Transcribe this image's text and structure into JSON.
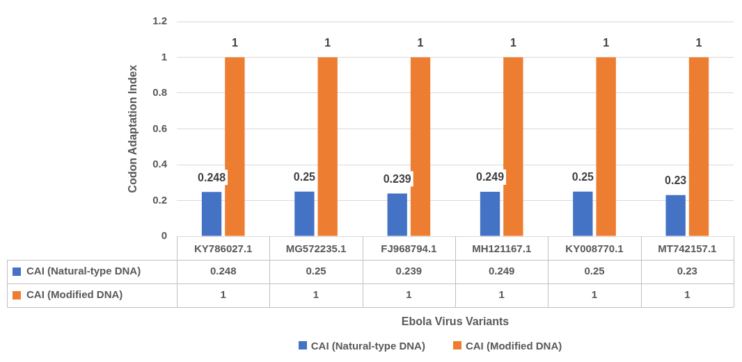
{
  "chart_data": {
    "type": "bar",
    "ylabel": "Codon Adaptation Index",
    "categories": [
      "KY786027.1",
      "MG572235.1",
      "FJ968794.1",
      "MH121167.1",
      "KY008770.1",
      "MT742157.1"
    ],
    "series": [
      {
        "name": "CAI (Natural-type DNA)",
        "color": "#4472c4",
        "values": [
          0.248,
          0.25,
          0.239,
          0.249,
          0.25,
          0.23
        ],
        "value_labels": [
          "0.248",
          "0.25",
          "0.239",
          "0.249",
          "0.25",
          "0.23"
        ]
      },
      {
        "name": "CAI (Modified DNA)",
        "color": "#ed7d31",
        "values": [
          1,
          1,
          1,
          1,
          1,
          1
        ],
        "value_labels": [
          "1",
          "1",
          "1",
          "1",
          "1",
          "1"
        ]
      }
    ],
    "annotations": [
      "Ebola Virus Variants",
      {
        "text": "0.248",
        "x": "KY786027.1",
        "y": 0.248
      },
      {
        "text": "0.25",
        "x": "MG572235.1",
        "y": 0.25
      },
      {
        "text": "0.239",
        "x": "FJ968794.1",
        "y": 0.239
      },
      {
        "text": "0.249",
        "x": "MH121167.1",
        "y": 0.249
      },
      {
        "text": "0.25",
        "x": "KY008770.1",
        "y": 0.25
      },
      {
        "text": "0.23",
        "x": "MT742157.1",
        "y": 0.23
      },
      {
        "text": "1",
        "x": "KY786027.1",
        "y": 1
      },
      {
        "text": "1",
        "x": "MG572235.1",
        "y": 1
      },
      {
        "text": "1",
        "x": "FJ968794.1",
        "y": 1
      },
      {
        "text": "1",
        "x": "MH121167.1",
        "y": 1
      },
      {
        "text": "1",
        "x": "KY008770.1",
        "y": 1
      },
      {
        "text": "1",
        "x": "MT742157.1",
        "y": 1
      }
    ],
    "ylim": [
      0,
      1.2
    ],
    "yticks": [
      0,
      0.2,
      0.4,
      0.6,
      0.8,
      1,
      1.2
    ],
    "grid": "y",
    "legend": "bottom"
  }
}
